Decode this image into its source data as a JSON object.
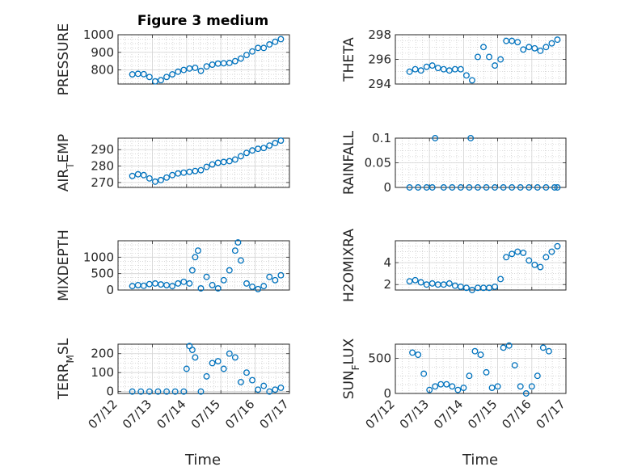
{
  "figure": {
    "title": "Figure 3 medium",
    "xlabel": "Time"
  },
  "colors": {
    "marker": "#0072bd",
    "axes": "#262626",
    "background": "#ffffff"
  },
  "chart_data": [
    {
      "type": "scatter",
      "title": "Figure 3 medium",
      "ylabel": "PRESSURE",
      "ylim": [
        720,
        1000
      ],
      "yticks": [
        "800",
        "900",
        "1000"
      ],
      "grid": true,
      "x": [
        "07/12 10:00",
        "07/12 14:00",
        "07/12 18:00",
        "07/12 22:00",
        "07/13 02:00",
        "07/13 06:00",
        "07/13 10:00",
        "07/13 14:00",
        "07/13 18:00",
        "07/13 22:00",
        "07/14 02:00",
        "07/14 06:00",
        "07/14 10:00",
        "07/14 14:00",
        "07/14 18:00",
        "07/14 22:00",
        "07/15 02:00",
        "07/15 06:00",
        "07/15 10:00",
        "07/15 14:00",
        "07/15 18:00",
        "07/15 22:00",
        "07/16 02:00",
        "07/16 06:00",
        "07/16 10:00",
        "07/16 14:00",
        "07/16 18:00"
      ],
      "y": [
        775,
        778,
        776,
        760,
        735,
        742,
        760,
        775,
        790,
        800,
        808,
        812,
        795,
        820,
        830,
        836,
        838,
        840,
        850,
        865,
        885,
        905,
        925,
        925,
        945,
        960,
        975
      ]
    },
    {
      "type": "scatter",
      "ylabel": "THETA",
      "ylim": [
        294,
        298
      ],
      "yticks": [
        "294",
        "296",
        "298"
      ],
      "grid": true,
      "x": [
        "07/12 10:00",
        "07/12 14:00",
        "07/12 18:00",
        "07/12 22:00",
        "07/13 02:00",
        "07/13 06:00",
        "07/13 10:00",
        "07/13 14:00",
        "07/13 18:00",
        "07/13 22:00",
        "07/14 02:00",
        "07/14 06:00",
        "07/14 10:00",
        "07/14 14:00",
        "07/14 18:00",
        "07/14 22:00",
        "07/15 02:00",
        "07/15 06:00",
        "07/15 10:00",
        "07/15 14:00",
        "07/15 18:00",
        "07/15 22:00",
        "07/16 02:00",
        "07/16 06:00",
        "07/16 10:00",
        "07/16 14:00",
        "07/16 18:00"
      ],
      "y": [
        295,
        295.2,
        295.1,
        295.4,
        295.5,
        295.3,
        295.2,
        295.1,
        295.2,
        295.2,
        294.7,
        294.3,
        296.2,
        297.0,
        296.2,
        295.5,
        296.0,
        297.5,
        297.5,
        297.4,
        296.8,
        297.0,
        296.9,
        296.7,
        297.0,
        297.3,
        297.6
      ]
    },
    {
      "type": "scatter",
      "ylabel": "AIR_TEMP",
      "ylim": [
        267,
        297
      ],
      "yticks": [
        "270",
        "280",
        "290"
      ],
      "grid": true,
      "x": [
        "07/12 10:00",
        "07/12 14:00",
        "07/12 18:00",
        "07/12 22:00",
        "07/13 02:00",
        "07/13 06:00",
        "07/13 10:00",
        "07/13 14:00",
        "07/13 18:00",
        "07/13 22:00",
        "07/14 02:00",
        "07/14 06:00",
        "07/14 10:00",
        "07/14 14:00",
        "07/14 18:00",
        "07/14 22:00",
        "07/15 02:00",
        "07/15 06:00",
        "07/15 10:00",
        "07/15 14:00",
        "07/15 18:00",
        "07/15 22:00",
        "07/16 02:00",
        "07/16 06:00",
        "07/16 10:00",
        "07/16 14:00",
        "07/16 18:00"
      ],
      "y": [
        274,
        275,
        274.5,
        272.5,
        270.5,
        271.5,
        273,
        274.5,
        275.5,
        276,
        276.5,
        277,
        277.5,
        279.5,
        281,
        282,
        282.5,
        283,
        284,
        286,
        288,
        289.5,
        290.5,
        291,
        292.5,
        294,
        295.5
      ]
    },
    {
      "type": "scatter",
      "ylabel": "RAINFALL",
      "ylim": [
        0,
        0.1
      ],
      "yticks": [
        "0",
        "0.05",
        "0.1"
      ],
      "grid": true,
      "x": [
        "07/12 10:00",
        "07/12 16:00",
        "07/12 22:00",
        "07/13 02:00",
        "07/13 04:00",
        "07/13 10:00",
        "07/13 16:00",
        "07/13 22:00",
        "07/14 04:00",
        "07/14 05:00",
        "07/14 10:00",
        "07/14 16:00",
        "07/14 22:00",
        "07/15 04:00",
        "07/15 10:00",
        "07/15 16:00",
        "07/15 22:00",
        "07/16 04:00",
        "07/16 10:00",
        "07/16 16:00",
        "07/16 18:00"
      ],
      "y": [
        0,
        0,
        0,
        0,
        0.1,
        0,
        0,
        0,
        0,
        0.1,
        0,
        0,
        0,
        0,
        0,
        0,
        0,
        0,
        0,
        0,
        0
      ]
    },
    {
      "type": "scatter",
      "ylabel": "MIXDEPTH",
      "ylim": [
        0,
        1500
      ],
      "yticks": [
        "0",
        "500",
        "1000"
      ],
      "grid": true,
      "x": [
        "07/12 10:00",
        "07/12 14:00",
        "07/12 18:00",
        "07/12 22:00",
        "07/13 02:00",
        "07/13 06:00",
        "07/13 10:00",
        "07/13 14:00",
        "07/13 18:00",
        "07/13 22:00",
        "07/14 02:00",
        "07/14 04:00",
        "07/14 06:00",
        "07/14 08:00",
        "07/14 10:00",
        "07/14 14:00",
        "07/14 18:00",
        "07/14 22:00",
        "07/15 02:00",
        "07/15 06:00",
        "07/15 10:00",
        "07/15 12:00",
        "07/15 14:00",
        "07/15 18:00",
        "07/15 22:00",
        "07/16 02:00",
        "07/16 06:00",
        "07/16 10:00",
        "07/16 14:00",
        "07/16 18:00"
      ],
      "y": [
        120,
        150,
        130,
        180,
        200,
        170,
        150,
        120,
        200,
        250,
        200,
        600,
        1000,
        1200,
        50,
        400,
        150,
        50,
        300,
        600,
        1200,
        1450,
        900,
        200,
        100,
        30,
        120,
        400,
        300,
        450
      ]
    },
    {
      "type": "scatter",
      "ylabel": "H2OMIXRA",
      "ylim": [
        1.5,
        6
      ],
      "yticks": [
        "2",
        "4"
      ],
      "grid": true,
      "x": [
        "07/12 10:00",
        "07/12 14:00",
        "07/12 18:00",
        "07/12 22:00",
        "07/13 02:00",
        "07/13 06:00",
        "07/13 10:00",
        "07/13 14:00",
        "07/13 18:00",
        "07/13 22:00",
        "07/14 02:00",
        "07/14 06:00",
        "07/14 10:00",
        "07/14 14:00",
        "07/14 18:00",
        "07/14 22:00",
        "07/15 02:00",
        "07/15 06:00",
        "07/15 10:00",
        "07/15 14:00",
        "07/15 18:00",
        "07/15 22:00",
        "07/16 02:00",
        "07/16 06:00",
        "07/16 10:00",
        "07/16 14:00",
        "07/16 18:00"
      ],
      "y": [
        2.3,
        2.4,
        2.2,
        2.0,
        2.1,
        2.0,
        2.0,
        2.1,
        1.9,
        1.8,
        1.7,
        1.5,
        1.7,
        1.7,
        1.7,
        1.8,
        2.5,
        4.5,
        4.8,
        5.0,
        4.9,
        4.2,
        3.8,
        3.6,
        4.5,
        5.0,
        5.5
      ]
    },
    {
      "type": "scatter",
      "ylabel": "TERR_MSL",
      "ylim": [
        -10,
        250
      ],
      "yticks": [
        "0",
        "100",
        "200"
      ],
      "grid": true,
      "x": [
        "07/12 10:00",
        "07/12 16:00",
        "07/12 22:00",
        "07/13 04:00",
        "07/13 10:00",
        "07/13 16:00",
        "07/13 22:00",
        "07/14 00:00",
        "07/14 02:00",
        "07/14 04:00",
        "07/14 06:00",
        "07/14 10:00",
        "07/14 14:00",
        "07/14 18:00",
        "07/14 22:00",
        "07/15 02:00",
        "07/15 06:00",
        "07/15 10:00",
        "07/15 14:00",
        "07/15 18:00",
        "07/15 22:00",
        "07/16 02:00",
        "07/16 06:00",
        "07/16 10:00",
        "07/16 14:00",
        "07/16 18:00"
      ],
      "y": [
        0,
        0,
        0,
        0,
        0,
        0,
        0,
        120,
        240,
        220,
        180,
        0,
        80,
        150,
        160,
        120,
        200,
        180,
        50,
        100,
        60,
        10,
        30,
        0,
        10,
        20
      ]
    },
    {
      "type": "scatter",
      "ylabel": "SUN_FLUX",
      "ylim": [
        0,
        700
      ],
      "yticks": [
        "0",
        "500"
      ],
      "grid": true,
      "x": [
        "07/12 12:00",
        "07/12 16:00",
        "07/12 20:00",
        "07/13 00:00",
        "07/13 04:00",
        "07/13 08:00",
        "07/13 12:00",
        "07/13 16:00",
        "07/13 20:00",
        "07/14 00:00",
        "07/14 04:00",
        "07/14 08:00",
        "07/14 12:00",
        "07/14 16:00",
        "07/14 20:00",
        "07/15 00:00",
        "07/15 04:00",
        "07/15 08:00",
        "07/15 12:00",
        "07/15 16:00",
        "07/15 20:00",
        "07/16 00:00",
        "07/16 04:00",
        "07/16 08:00",
        "07/16 12:00"
      ],
      "y": [
        580,
        550,
        280,
        50,
        100,
        130,
        130,
        100,
        50,
        80,
        250,
        600,
        550,
        300,
        80,
        100,
        650,
        680,
        400,
        100,
        0,
        100,
        250,
        650,
        600
      ]
    }
  ],
  "xaxis": {
    "ticks": [
      "07/12",
      "07/13",
      "07/14",
      "07/15",
      "07/16",
      "07/17"
    ],
    "range": [
      "07/12 00:00",
      "07/17 00:00"
    ]
  }
}
